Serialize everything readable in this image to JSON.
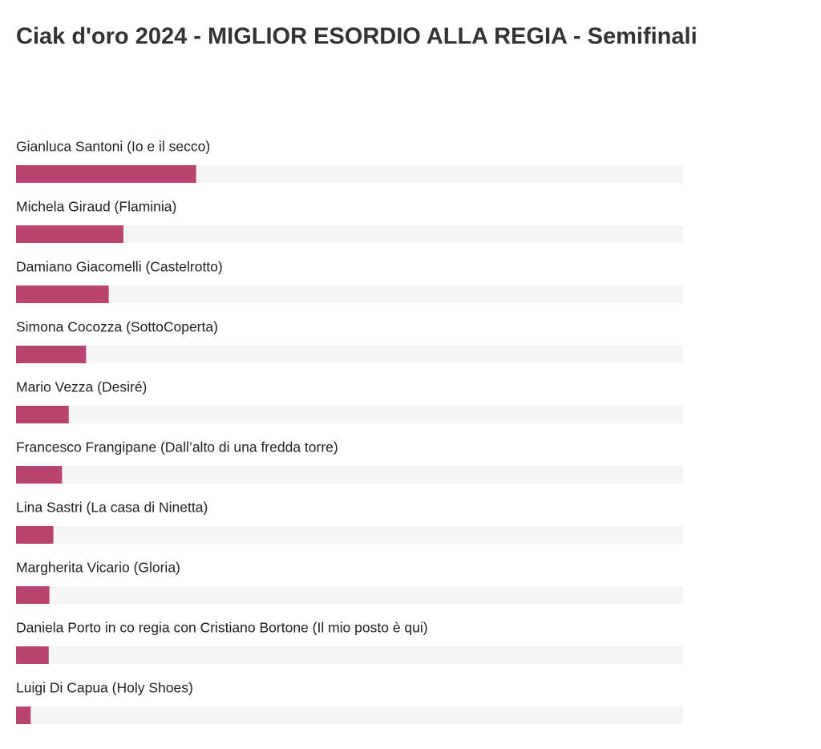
{
  "chart_data": {
    "type": "bar",
    "orientation": "horizontal",
    "title": "Ciak d'oro 2024 - MIGLIOR ESORDIO ALLA REGIA - Semifinali",
    "categories": [
      "Gianluca Santoni (Io e il secco)",
      "Michela Giraud (Flaminia)",
      "Damiano Giacomelli (Castelrotto)",
      "Simona Cocozza (SottoCoperta)",
      "Mario Vezza (Desiré)",
      "Francesco Frangipane (Dall’alto di una fredda torre)",
      "Lina Sastri (La casa di Ninetta)",
      "Margherita Vicario (Gloria)",
      "Daniela Porto in co regia con Cristiano Bortone (Il mio posto è qui)",
      "Luigi Di Capua (Holy Shoes)"
    ],
    "values": [
      27.0,
      16.1,
      13.9,
      10.5,
      7.9,
      6.9,
      5.6,
      5.0,
      4.9,
      2.2
    ],
    "color": "#b94470",
    "xlim": [
      0,
      100
    ]
  }
}
